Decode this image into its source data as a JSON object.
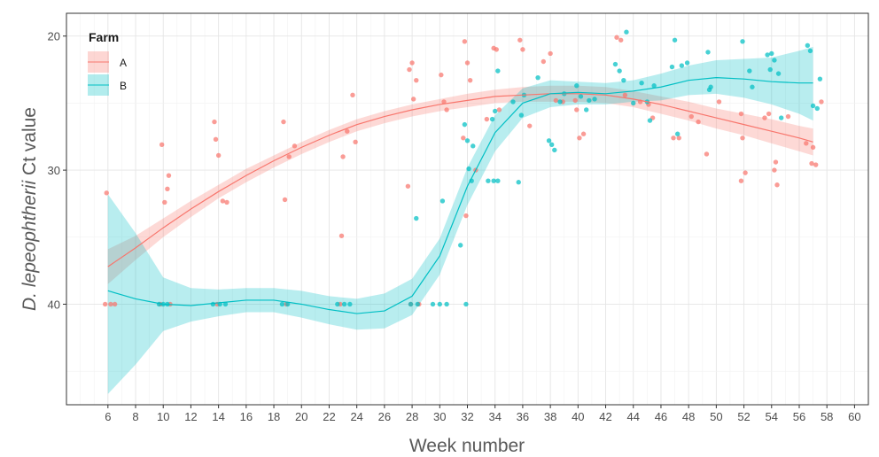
{
  "chart_data": {
    "type": "scatter",
    "xlabel": "Week number",
    "ylabel_italic": "D. lepeophtherii",
    "ylabel_rest": " Ct value",
    "y_reversed": true,
    "xlim": [
      3,
      61
    ],
    "ylim": [
      47.5,
      18.3
    ],
    "x_ticks": [
      6,
      8,
      10,
      12,
      14,
      16,
      18,
      20,
      22,
      24,
      26,
      28,
      30,
      32,
      34,
      36,
      38,
      40,
      42,
      44,
      46,
      48,
      50,
      52,
      54,
      56,
      58,
      60
    ],
    "y_ticks": [
      20,
      30,
      40
    ],
    "grid": true,
    "legend": {
      "title": "Farm",
      "position": "top-left",
      "entries": [
        "A",
        "B"
      ]
    },
    "series": [
      {
        "name": "A",
        "color": "#f8766d",
        "smooth": [
          [
            6,
            37.2
          ],
          [
            8,
            35.8
          ],
          [
            10,
            34.3
          ],
          [
            12,
            32.9
          ],
          [
            14,
            31.6
          ],
          [
            16,
            30.4
          ],
          [
            18,
            29.3
          ],
          [
            20,
            28.3
          ],
          [
            22,
            27.4
          ],
          [
            24,
            26.6
          ],
          [
            26,
            26.0
          ],
          [
            28,
            25.5
          ],
          [
            30,
            25.1
          ],
          [
            32,
            24.8
          ],
          [
            34,
            24.5
          ],
          [
            36,
            24.4
          ],
          [
            38,
            24.3
          ],
          [
            40,
            24.3
          ],
          [
            42,
            24.4
          ],
          [
            44,
            24.7
          ],
          [
            46,
            25.1
          ],
          [
            48,
            25.6
          ],
          [
            50,
            26.1
          ],
          [
            52,
            26.6
          ],
          [
            54,
            27.1
          ],
          [
            56,
            27.6
          ],
          [
            57,
            27.9
          ]
        ],
        "band": [
          [
            6,
            35.9,
            38.5
          ],
          [
            8,
            34.9,
            36.7
          ],
          [
            10,
            33.6,
            35.0
          ],
          [
            12,
            32.3,
            33.5
          ],
          [
            14,
            31.1,
            32.1
          ],
          [
            16,
            29.9,
            30.9
          ],
          [
            18,
            28.9,
            29.8
          ],
          [
            20,
            27.9,
            28.8
          ],
          [
            22,
            27.0,
            27.9
          ],
          [
            24,
            26.2,
            27.1
          ],
          [
            26,
            25.6,
            26.5
          ],
          [
            28,
            25.1,
            26.0
          ],
          [
            30,
            24.7,
            25.6
          ],
          [
            32,
            24.3,
            25.3
          ],
          [
            34,
            24.0,
            25.0
          ],
          [
            36,
            23.8,
            24.9
          ],
          [
            38,
            23.7,
            24.9
          ],
          [
            40,
            23.7,
            24.9
          ],
          [
            42,
            23.8,
            25.0
          ],
          [
            44,
            24.1,
            25.3
          ],
          [
            46,
            24.5,
            25.8
          ],
          [
            48,
            24.9,
            26.3
          ],
          [
            50,
            25.4,
            26.9
          ],
          [
            52,
            25.8,
            27.4
          ],
          [
            54,
            26.2,
            28.0
          ],
          [
            56,
            26.7,
            28.6
          ],
          [
            57,
            26.9,
            28.9
          ]
        ],
        "points": [
          [
            5.9,
            31.7
          ],
          [
            5.8,
            40.0
          ],
          [
            6.2,
            40.0
          ],
          [
            6.5,
            40.0
          ],
          [
            9.9,
            28.1
          ],
          [
            10.1,
            32.4
          ],
          [
            10.3,
            31.4
          ],
          [
            10.4,
            30.4
          ],
          [
            9.8,
            40.0
          ],
          [
            10.5,
            40.0
          ],
          [
            13.7,
            26.4
          ],
          [
            13.8,
            27.7
          ],
          [
            14.0,
            28.9
          ],
          [
            14.3,
            32.3
          ],
          [
            14.6,
            32.4
          ],
          [
            13.9,
            40.0
          ],
          [
            18.7,
            26.4
          ],
          [
            18.8,
            32.2
          ],
          [
            19.1,
            29.0
          ],
          [
            19.5,
            28.2
          ],
          [
            18.9,
            40.0
          ],
          [
            22.9,
            34.9
          ],
          [
            23.0,
            29.0
          ],
          [
            23.3,
            27.1
          ],
          [
            23.7,
            24.4
          ],
          [
            23.9,
            27.9
          ],
          [
            22.8,
            40.0
          ],
          [
            27.7,
            31.2
          ],
          [
            27.8,
            22.5
          ],
          [
            28.0,
            22.0
          ],
          [
            28.3,
            23.3
          ],
          [
            28.1,
            24.7
          ],
          [
            27.9,
            40.0
          ],
          [
            28.5,
            40.0
          ],
          [
            30.1,
            22.9
          ],
          [
            30.3,
            24.9
          ],
          [
            30.5,
            25.5
          ],
          [
            31.7,
            27.6
          ],
          [
            31.8,
            20.4
          ],
          [
            32.0,
            22.0
          ],
          [
            32.2,
            23.3
          ],
          [
            32.6,
            30.0
          ],
          [
            31.9,
            33.4
          ],
          [
            33.4,
            26.2
          ],
          [
            33.9,
            20.9
          ],
          [
            34.1,
            21.0
          ],
          [
            34.3,
            25.5
          ],
          [
            35.8,
            20.3
          ],
          [
            36.0,
            21.0
          ],
          [
            36.5,
            26.7
          ],
          [
            37.5,
            21.9
          ],
          [
            38.0,
            21.3
          ],
          [
            38.4,
            24.8
          ],
          [
            38.9,
            24.9
          ],
          [
            39.8,
            24.8
          ],
          [
            39.9,
            25.5
          ],
          [
            40.4,
            27.3
          ],
          [
            40.1,
            27.6
          ],
          [
            42.8,
            20.1
          ],
          [
            43.1,
            20.3
          ],
          [
            43.4,
            24.4
          ],
          [
            44.5,
            24.9
          ],
          [
            45.1,
            25.1
          ],
          [
            45.4,
            26.1
          ],
          [
            46.9,
            27.6
          ],
          [
            47.3,
            27.6
          ],
          [
            48.2,
            26.0
          ],
          [
            48.7,
            26.4
          ],
          [
            49.3,
            28.8
          ],
          [
            50.2,
            24.9
          ],
          [
            51.8,
            25.8
          ],
          [
            51.9,
            27.6
          ],
          [
            52.1,
            30.2
          ],
          [
            51.8,
            30.8
          ],
          [
            53.5,
            26.1
          ],
          [
            53.8,
            25.8
          ],
          [
            54.2,
            30.0
          ],
          [
            54.3,
            29.4
          ],
          [
            54.4,
            31.1
          ],
          [
            55.2,
            26.0
          ],
          [
            56.5,
            28.0
          ],
          [
            56.9,
            29.5
          ],
          [
            57.0,
            28.3
          ],
          [
            57.2,
            29.6
          ],
          [
            57.6,
            24.9
          ]
        ]
      },
      {
        "name": "B",
        "color": "#00bfc4",
        "smooth": [
          [
            6,
            39.0
          ],
          [
            8,
            39.6
          ],
          [
            10,
            40.0
          ],
          [
            12,
            40.1
          ],
          [
            14,
            39.9
          ],
          [
            16,
            39.7
          ],
          [
            18,
            39.7
          ],
          [
            20,
            40.0
          ],
          [
            22,
            40.4
          ],
          [
            24,
            40.7
          ],
          [
            26,
            40.5
          ],
          [
            28,
            39.4
          ],
          [
            30,
            36.4
          ],
          [
            32,
            31.2
          ],
          [
            34,
            27.2
          ],
          [
            36,
            25.0
          ],
          [
            38,
            24.3
          ],
          [
            40,
            24.2
          ],
          [
            42,
            24.3
          ],
          [
            44,
            24.1
          ],
          [
            46,
            23.8
          ],
          [
            48,
            23.3
          ],
          [
            50,
            23.1
          ],
          [
            52,
            23.2
          ],
          [
            54,
            23.4
          ],
          [
            56,
            23.5
          ],
          [
            57,
            23.5
          ]
        ],
        "band": [
          [
            6,
            31.8,
            46.7
          ],
          [
            8,
            34.7,
            44.5
          ],
          [
            10,
            38.0,
            42.0
          ],
          [
            12,
            38.8,
            41.3
          ],
          [
            14,
            38.9,
            40.9
          ],
          [
            16,
            38.8,
            40.6
          ],
          [
            18,
            38.8,
            40.6
          ],
          [
            20,
            39.0,
            41.0
          ],
          [
            22,
            39.4,
            41.5
          ],
          [
            24,
            39.6,
            41.9
          ],
          [
            26,
            39.2,
            41.8
          ],
          [
            28,
            38.1,
            40.8
          ],
          [
            30,
            35.1,
            37.8
          ],
          [
            32,
            29.8,
            32.6
          ],
          [
            34,
            25.9,
            28.6
          ],
          [
            36,
            23.9,
            26.1
          ],
          [
            38,
            23.3,
            25.3
          ],
          [
            40,
            23.4,
            25.1
          ],
          [
            42,
            23.5,
            25.1
          ],
          [
            44,
            23.3,
            24.9
          ],
          [
            46,
            22.8,
            24.8
          ],
          [
            48,
            22.2,
            24.4
          ],
          [
            50,
            21.8,
            24.3
          ],
          [
            52,
            21.7,
            24.6
          ],
          [
            54,
            21.6,
            25.1
          ],
          [
            56,
            21.1,
            25.8
          ],
          [
            57,
            20.8,
            26.3
          ]
        ],
        "points": [
          [
            9.7,
            40.0
          ],
          [
            10.0,
            40.0
          ],
          [
            10.3,
            40.0
          ],
          [
            13.6,
            40.0
          ],
          [
            14.1,
            40.0
          ],
          [
            14.5,
            40.0
          ],
          [
            18.6,
            40.0
          ],
          [
            19.0,
            40.0
          ],
          [
            22.6,
            40.0
          ],
          [
            23.1,
            40.0
          ],
          [
            23.5,
            40.0
          ],
          [
            27.9,
            40.0
          ],
          [
            28.4,
            40.0
          ],
          [
            29.5,
            40.0
          ],
          [
            30.0,
            40.0
          ],
          [
            30.5,
            40.0
          ],
          [
            31.9,
            40.0
          ],
          [
            28.3,
            33.6
          ],
          [
            30.2,
            32.3
          ],
          [
            31.5,
            35.6
          ],
          [
            32.1,
            29.9
          ],
          [
            32.3,
            30.8
          ],
          [
            31.8,
            26.6
          ],
          [
            32.0,
            27.8
          ],
          [
            32.4,
            28.2
          ],
          [
            33.5,
            30.8
          ],
          [
            33.9,
            30.8
          ],
          [
            34.2,
            30.8
          ],
          [
            33.8,
            26.2
          ],
          [
            34.0,
            25.6
          ],
          [
            34.2,
            22.6
          ],
          [
            35.3,
            24.9
          ],
          [
            35.7,
            30.9
          ],
          [
            35.9,
            25.9
          ],
          [
            36.1,
            24.4
          ],
          [
            37.1,
            23.1
          ],
          [
            37.9,
            27.8
          ],
          [
            38.1,
            28.1
          ],
          [
            38.3,
            28.5
          ],
          [
            38.7,
            24.9
          ],
          [
            39.0,
            24.3
          ],
          [
            39.9,
            23.7
          ],
          [
            40.2,
            24.5
          ],
          [
            40.6,
            25.5
          ],
          [
            40.8,
            24.8
          ],
          [
            41.2,
            24.7
          ],
          [
            42.7,
            22.1
          ],
          [
            43.0,
            22.6
          ],
          [
            43.3,
            23.3
          ],
          [
            43.5,
            19.7
          ],
          [
            44.0,
            25.0
          ],
          [
            44.6,
            23.5
          ],
          [
            45.0,
            24.9
          ],
          [
            45.5,
            23.7
          ],
          [
            45.2,
            26.3
          ],
          [
            46.8,
            22.3
          ],
          [
            47.0,
            20.3
          ],
          [
            47.2,
            27.3
          ],
          [
            47.5,
            22.2
          ],
          [
            47.9,
            22.0
          ],
          [
            49.4,
            21.2
          ],
          [
            49.6,
            23.8
          ],
          [
            49.5,
            24.0
          ],
          [
            51.9,
            20.4
          ],
          [
            52.4,
            22.6
          ],
          [
            52.6,
            23.8
          ],
          [
            53.7,
            21.4
          ],
          [
            54.0,
            21.3
          ],
          [
            54.2,
            21.8
          ],
          [
            53.9,
            22.5
          ],
          [
            54.5,
            22.8
          ],
          [
            54.7,
            26.1
          ],
          [
            56.6,
            20.7
          ],
          [
            56.8,
            21.1
          ],
          [
            57.0,
            25.2
          ],
          [
            57.3,
            25.4
          ],
          [
            57.5,
            23.2
          ]
        ]
      }
    ]
  }
}
